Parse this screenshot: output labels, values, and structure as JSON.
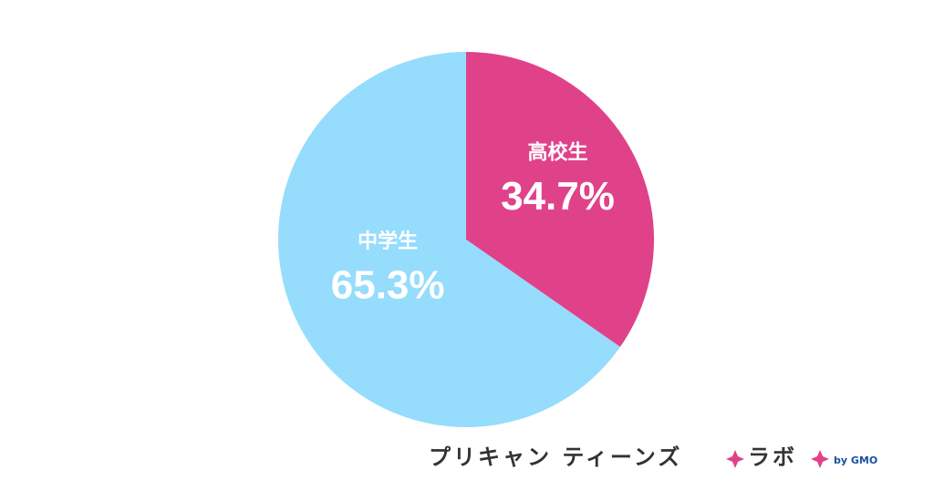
{
  "chart_data": {
    "type": "pie",
    "categories": [
      "高校生",
      "中学生"
    ],
    "values": [
      34.7,
      65.3
    ],
    "value_labels": [
      "34.7%",
      "65.3%"
    ],
    "colors": [
      "#e0428a",
      "#96dcfc"
    ]
  },
  "logo": {
    "name": "プリキャン ティーンズ",
    "sub": "ラボ",
    "by": "by GMO"
  }
}
